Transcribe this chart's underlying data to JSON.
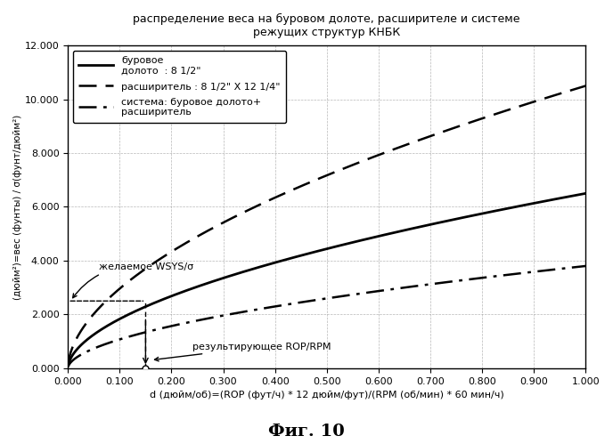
{
  "title_line1": "распределение веса на буровом долоте, расширителе и системе",
  "title_line2": "режущих структур КНБК",
  "xlabel": "d (дюйм/об)=(ROP (фут/ч) * 12 дюйм/фут)/(RPM (об/мин) * 60 мин/ч)",
  "ylabel": "(дюйм²)=вес (фунты) / σ(фунт/дюйм²)",
  "figcaption": "Фиг. 10",
  "xlim": [
    0.0,
    1.0
  ],
  "ylim": [
    0.0,
    12000
  ],
  "xticks": [
    0.0,
    0.1,
    0.2,
    0.3,
    0.4,
    0.5,
    0.6,
    0.7,
    0.8,
    0.9,
    1.0
  ],
  "yticks": [
    0,
    2000,
    4000,
    6000,
    8000,
    10000,
    12000
  ],
  "ytick_labels": [
    "0.000",
    "2.000",
    "4.000",
    "6.000",
    "8.000",
    "10.000",
    "12.000"
  ],
  "xtick_labels": [
    "0.000",
    "0.100",
    "0.200",
    "0.300",
    "0.400",
    "0.500",
    "0.600",
    "0.700",
    "0.800",
    "0.900",
    "1.000"
  ],
  "legend_label1": "буровое\nдолото  : 8 1/2\"",
  "legend_label2": "расширитель : 8 1/2\" X 12 1/4\"",
  "legend_label3": "система: буровое долото+\nрасширитель",
  "curve_bit_coeff": 6500,
  "curve_bit_power": 0.55,
  "curve_reamer_coeff": 10500,
  "curve_reamer_power": 0.55,
  "curve_system_coeff": 3800,
  "curve_system_power": 0.55,
  "annotation_wsys_text": "желаемое WSYS/σ",
  "annotation_rop_text": "результирующее ROP/RPM",
  "h_line_y": 2500,
  "v_line_x": 0.15,
  "background_color": "#ffffff",
  "grid_color": "#999999"
}
